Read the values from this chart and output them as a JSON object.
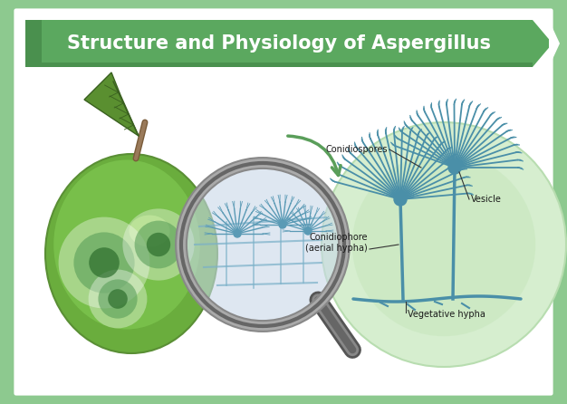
{
  "title": "Structure and Physiology of Aspergillus",
  "title_bg_color": "#5ba85f",
  "title_bg_dark": "#4a904e",
  "title_text_color": "#ffffff",
  "border_color": "#8dc98f",
  "bg_color": "#ffffff",
  "outer_bg_color": "#8dc98f",
  "diagram_circle_color": "#d4edcc",
  "diagram_circle_edge": "#b8ddb0",
  "arrow_color": "#5a9e5a",
  "labels": {
    "conidiospores": "Conidiospores",
    "vesicle": "Vesicle",
    "conidiophore": "Conidiophore\n(aerial hypha)",
    "vegetative": "Vegetative hypha"
  },
  "structure_color": "#4a8fa8",
  "label_fontsize": 7,
  "title_fontsize": 15,
  "fig_width": 6.26,
  "fig_height": 4.46,
  "dpi": 100
}
